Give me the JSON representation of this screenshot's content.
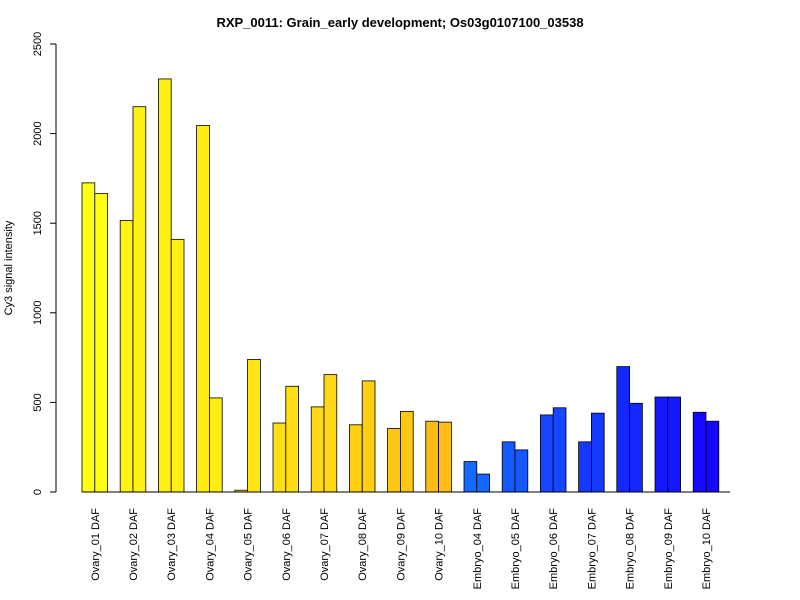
{
  "chart_data": {
    "type": "bar",
    "title": "RXP_0011: Grain_early development; Os03g0107100_03538",
    "xlabel": "",
    "ylabel": "Cy3 signal intensity",
    "ylim": [
      0,
      2500
    ],
    "yticks": [
      0,
      500,
      1000,
      1500,
      2000,
      2500
    ],
    "grid": false,
    "categories": [
      "Ovary_01 DAF",
      "Ovary_02 DAF",
      "Ovary_03 DAF",
      "Ovary_04 DAF",
      "Ovary_05 DAF",
      "Ovary_06 DAF",
      "Ovary_07 DAF",
      "Ovary_08 DAF",
      "Ovary_09 DAF",
      "Ovary_10 DAF",
      "Embryo_04 DAF",
      "Embryo_05 DAF",
      "Embryo_06 DAF",
      "Embryo_07 DAF",
      "Embryo_08 DAF",
      "Embryo_09 DAF",
      "Embryo_10 DAF"
    ],
    "series": [
      {
        "values": [
          1725,
          1515,
          2305,
          2045,
          10,
          385,
          475,
          375,
          355,
          395,
          170,
          280,
          430,
          280,
          700,
          530,
          445
        ]
      },
      {
        "values": [
          1665,
          2150,
          1410,
          525,
          740,
          590,
          655,
          620,
          450,
          390,
          100,
          235,
          470,
          440,
          495,
          530,
          395
        ]
      }
    ],
    "colors": [
      "#FFFF14",
      "#FFF114",
      "#FFF014",
      "#FFEC14",
      "#FFE614",
      "#FFDF14",
      "#FFD714",
      "#FFCF14",
      "#FFC614",
      "#FFBC14",
      "#1569FF",
      "#1558FF",
      "#1548FF",
      "#1538FF",
      "#1527FF",
      "#1517FF",
      "#1508FF"
    ]
  }
}
